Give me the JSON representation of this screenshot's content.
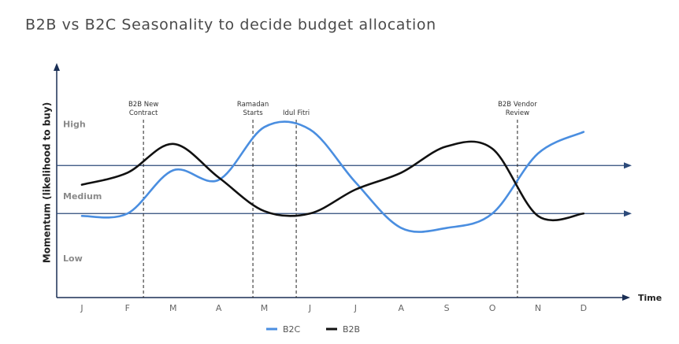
{
  "chart_data": {
    "type": "line",
    "title": "B2B vs B2C Seasonality to decide budget allocation",
    "x_label": "Time",
    "y_label": "Momentum (likelihood to buy)",
    "categories": [
      "J",
      "F",
      "M",
      "A",
      "M",
      "J",
      "J",
      "A",
      "S",
      "O",
      "N",
      "D"
    ],
    "series": [
      {
        "name": "B2C",
        "color": "#4a8ee0",
        "values": [
          34,
          35,
          53,
          49,
          71,
          70,
          48,
          29,
          29,
          35,
          60,
          69
        ]
      },
      {
        "name": "B2B",
        "color": "#111111",
        "values": [
          47,
          52,
          64,
          50,
          36,
          35,
          45,
          52,
          63,
          62,
          34,
          35
        ]
      }
    ],
    "ylim": [
      0,
      100
    ],
    "yticks": [
      {
        "value": 16,
        "label": "Low"
      },
      {
        "value": 42,
        "label": "Medium"
      },
      {
        "value": 72,
        "label": "High"
      }
    ],
    "thresholds": [
      35,
      55
    ],
    "threshold_color": "#2c4a7a",
    "annotations": [
      {
        "x": 1.35,
        "label": "B2B New Contract"
      },
      {
        "x": 3.75,
        "label": "Ramadan Starts"
      },
      {
        "x": 4.7,
        "label": "Idul Fitri"
      },
      {
        "x": 9.55,
        "label": "B2B Vendor Review"
      }
    ],
    "legend": "bottom"
  }
}
